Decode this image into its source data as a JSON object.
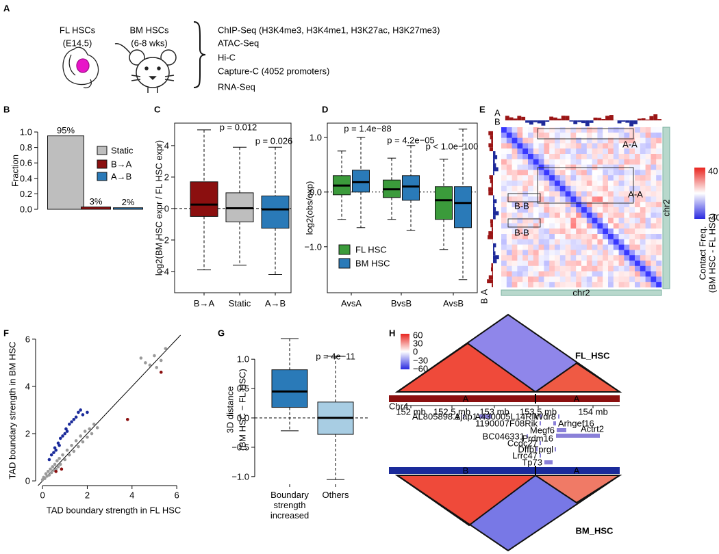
{
  "panel_labels": [
    "A",
    "B",
    "C",
    "D",
    "E",
    "F",
    "G",
    "H"
  ],
  "panel_a": {
    "samples": [
      {
        "name": "FL HSCs",
        "detail": "(E14.5)"
      },
      {
        "name": "BM HSCs",
        "detail": "(6-8 wks)"
      }
    ],
    "assays": [
      "ChIP-Seq (H3K4me3, H3K4me1, H3K27ac, H3K27me3)",
      "ATAC-Seq",
      "Hi-C",
      "Capture-C (4052 promoters)",
      "RNA-Seq"
    ]
  },
  "chart_data": [
    {
      "type": "bar",
      "ylabel": "Fraction",
      "categories": [
        "Static",
        "B→A",
        "A→B"
      ],
      "values": [
        0.95,
        0.03,
        0.02
      ],
      "value_labels": [
        "95%",
        "3%",
        "2%"
      ],
      "colors": [
        "#bebebe",
        "#8b0f0f",
        "#2a7ab8"
      ],
      "ylim": [
        0,
        1
      ],
      "yticks": [
        {
          "value": 0,
          "label": "0.0"
        },
        0.2,
        0.4,
        0.6,
        0.8,
        {
          "value": 1,
          "label": "1.0"
        }
      ],
      "legend": "upper right"
    },
    {
      "type": "box",
      "ylabel": "log2(BM HSC expr / FL HSC expr)",
      "categories": [
        "B→A",
        "Static",
        "A→B"
      ],
      "colors": [
        "#8b0f0f",
        "#bebebe",
        "#2a7ab8"
      ],
      "values": [
        {
          "min": -3.9,
          "q1": -0.5,
          "median": 0.25,
          "q3": 1.7,
          "max": 5.0
        },
        {
          "min": -3.6,
          "q1": -0.85,
          "median": 0.02,
          "q3": 1.0,
          "max": 3.9
        },
        {
          "min": -4.2,
          "q1": -1.25,
          "median": -0.05,
          "q3": 0.8,
          "max": 3.9
        }
      ],
      "annotations": [
        "p = 0.012",
        "p = 0.026"
      ],
      "reference_line": 0,
      "ylim": [
        -5.35,
        5.43
      ],
      "yticks": [
        {
          "value": -4,
          "label": "−4"
        },
        {
          "value": -2,
          "label": "−2"
        },
        0,
        2,
        4
      ]
    },
    {
      "type": "grouped_box",
      "ylabel": "log2(obs/exp)",
      "categories": [
        "AvsA",
        "BvsB",
        "AvsB"
      ],
      "series": [
        {
          "name": "FL HSC",
          "color": "#3b9b3b",
          "values": [
            {
              "min": -0.5,
              "q1": -0.05,
              "median": 0.12,
              "q3": 0.3,
              "max": 0.75
            },
            {
              "min": -0.5,
              "q1": -0.1,
              "median": 0.05,
              "q3": 0.22,
              "max": 0.62
            },
            {
              "min": -1.05,
              "q1": -0.5,
              "median": -0.15,
              "q3": 0.1,
              "max": 0.6
            }
          ]
        },
        {
          "name": "BM HSC",
          "color": "#2a7ab8",
          "values": [
            {
              "min": -0.65,
              "q1": 0.0,
              "median": 0.18,
              "q3": 0.4,
              "max": 1.0
            },
            {
              "min": -0.7,
              "q1": -0.15,
              "median": 0.1,
              "q3": 0.3,
              "max": 0.85
            },
            {
              "min": -1.6,
              "q1": -0.65,
              "median": -0.2,
              "q3": 0.1,
              "max": 1.15
            }
          ]
        }
      ],
      "annotations": [
        "p = 1.4e−88",
        "p = 4.2e−05",
        "p < 1.0e−100"
      ],
      "reference_line": 0,
      "ylim": [
        -1.84,
        1.26
      ],
      "yticks": [
        {
          "value": 1,
          "label": "1.0"
        },
        {
          "value": 0,
          "label": "0.0"
        },
        {
          "value": -1,
          "label": "−1.0"
        }
      ],
      "legend": "lower left"
    },
    {
      "type": "scatter",
      "xlabel": "TAD boundary strength in FL HSC",
      "ylabel": "TAD boundary strength in BM HSC",
      "xlim": [
        -0.31,
        6.67
      ],
      "ylim": [
        -0.2,
        6.17
      ],
      "xticks": [
        0,
        2,
        4,
        6
      ],
      "yticks": [
        0,
        2,
        4,
        6
      ],
      "diagonal": true,
      "series": [
        {
          "color": "#9a9a9a",
          "x": [
            0,
            0.05,
            0.1,
            0.15,
            0.2,
            0.25,
            0.3,
            0.35,
            0.4,
            0.45,
            0.5,
            0.55,
            0.6,
            0.65,
            0.7,
            0.75,
            0.8,
            0.9,
            1.0,
            1.1,
            1.2,
            1.3,
            1.4,
            1.5,
            1.6,
            1.7,
            1.8,
            1.9,
            2.0,
            2.1,
            2.2,
            2.3,
            2.45,
            4.4,
            4.6,
            4.8,
            5.0,
            5.1,
            5.3,
            5.5
          ],
          "y": [
            0.05,
            0.15,
            0.1,
            0.3,
            0.2,
            0.4,
            0.25,
            0.5,
            0.35,
            0.6,
            0.45,
            0.7,
            0.5,
            0.85,
            0.6,
            0.95,
            0.7,
            1.1,
            0.9,
            1.3,
            1.1,
            1.5,
            1.25,
            1.7,
            1.45,
            1.9,
            1.65,
            2.1,
            1.85,
            2.2,
            2.0,
            2.4,
            2.25,
            5.2,
            5.0,
            4.9,
            5.3,
            4.8,
            5.1,
            5.6
          ]
        },
        {
          "color": "#1a2a9a",
          "x": [
            0.3,
            0.4,
            0.5,
            0.55,
            0.6,
            0.7,
            0.75,
            0.8,
            0.9,
            1.0,
            1.05,
            1.1,
            1.2,
            1.3,
            1.4,
            1.5,
            1.6,
            1.7,
            1.8,
            2.0
          ],
          "y": [
            0.9,
            1.1,
            1.2,
            1.4,
            1.3,
            1.6,
            1.5,
            1.8,
            1.9,
            2.0,
            2.2,
            2.1,
            2.4,
            2.5,
            2.6,
            2.7,
            2.9,
            3.0,
            2.8,
            2.9
          ]
        },
        {
          "color": "#8b0f0f",
          "x": [
            0.85,
            0.6,
            3.8,
            5.3
          ],
          "y": [
            0.5,
            0.4,
            2.6,
            4.6
          ]
        }
      ]
    },
    {
      "type": "box",
      "ylabel": [
        "3D distance",
        "(BM HSC − FL HSC)"
      ],
      "categories": [
        "Boundary strength increased",
        "Others"
      ],
      "colors": [
        "#2a7ab8",
        "#a8cde3"
      ],
      "values": [
        {
          "min": -0.22,
          "q1": 0.18,
          "median": 0.45,
          "q3": 0.82,
          "max": 1.35
        },
        {
          "min": -1.05,
          "q1": -0.28,
          "median": 0.0,
          "q3": 0.27,
          "max": 1.05
        }
      ],
      "annotations": [
        "p = 4e−11"
      ],
      "reference_line": 0,
      "ylim": [
        -1.13,
        1.41
      ],
      "yticks": [
        {
          "value": -1,
          "label": "−1.0"
        },
        {
          "value": -0.5,
          "label": "−0.5"
        },
        {
          "value": 0,
          "label": "0.0"
        },
        0.5,
        {
          "value": 1,
          "label": "1.0"
        }
      ]
    }
  ],
  "panel_e": {
    "track_labels": [
      "A",
      "B"
    ],
    "box_labels": [
      "A-A",
      "A-A",
      "B-B",
      "B-B"
    ],
    "colorbar": {
      "title": [
        "Contact Freq.",
        "(BM HSC - FL HSC)"
      ],
      "ticks": [
        "40",
        "-40"
      ]
    },
    "axis_label": "chr2",
    "side_label": "chr2",
    "bottom_track_labels": [
      "A",
      "B"
    ]
  },
  "panel_h": {
    "colorbar_ticks": [
      "60",
      "30",
      "0",
      "−30",
      "−60"
    ],
    "samples": [
      "FL_HSC",
      "BM_HSC"
    ],
    "fl_compartments": [
      "A",
      "A"
    ],
    "bm_compartments": [
      "B",
      "A"
    ],
    "chromosome": "Chr4",
    "positions": [
      "152 mb",
      "152.5 mb",
      "153 mb",
      "153.5 mb",
      "154 mb"
    ],
    "genes": [
      "AL805898.1",
      "Ajap1",
      "A430005L14Rik",
      "Wdr8",
      "1190007F08Rik",
      "Arhgef16",
      "Megf6",
      "Actrt2",
      "BC046331",
      "Prdm16",
      "Ccdc27",
      "Dffb",
      "Tprgl",
      "Lrrc47",
      "Tp73"
    ]
  }
}
